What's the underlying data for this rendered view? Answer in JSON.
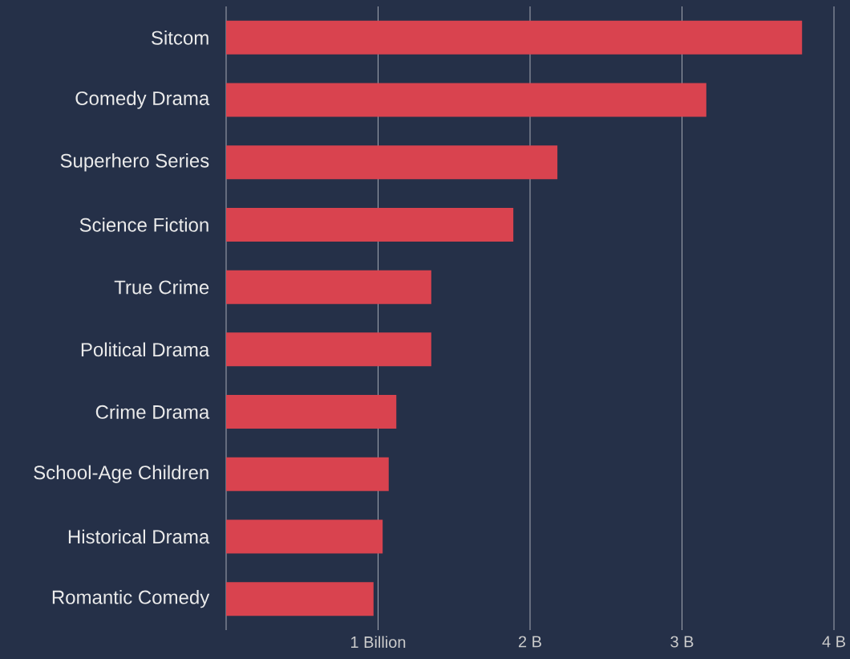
{
  "chart_data": {
    "type": "bar",
    "orientation": "horizontal",
    "categories": [
      "Sitcom",
      "Comedy Drama",
      "Superhero Series",
      "Science Fiction",
      "True Crime",
      "Political Drama",
      "Crime Drama",
      "School-Age Children",
      "Historical Drama",
      "Romantic Comedy"
    ],
    "values": [
      3.79,
      3.16,
      2.18,
      1.89,
      1.35,
      1.35,
      1.12,
      1.07,
      1.03,
      0.97
    ],
    "color": "#d9434f",
    "xlim": [
      0,
      4
    ],
    "xticks": [
      {
        "value": 0,
        "label": null
      },
      {
        "value": 1,
        "label": "1 Billion"
      },
      {
        "value": 2,
        "label": "2 B"
      },
      {
        "value": 3,
        "label": "3 B"
      },
      {
        "value": 4,
        "label": "4 B"
      }
    ],
    "grid": "x"
  }
}
